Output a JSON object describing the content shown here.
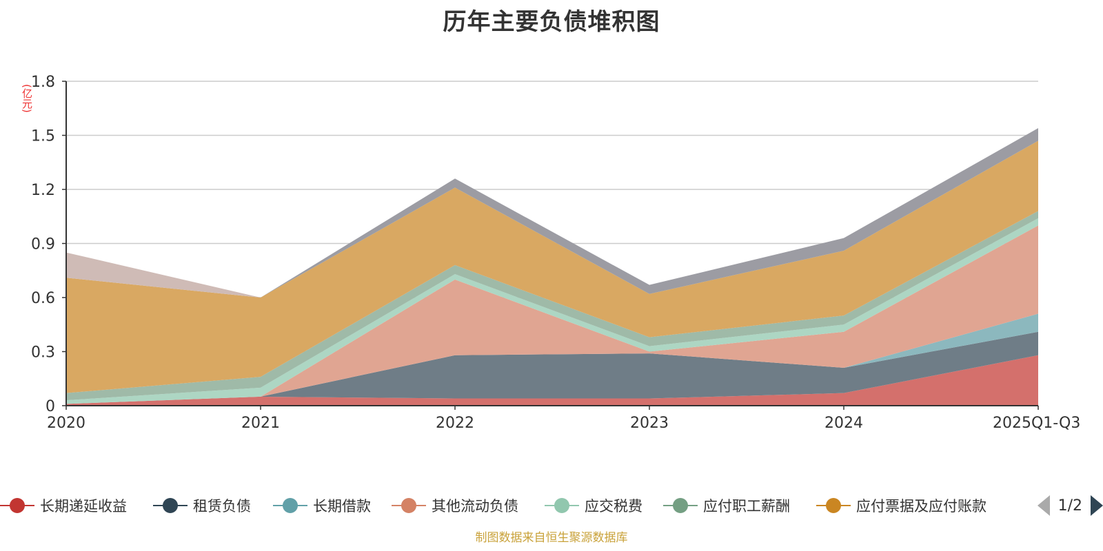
{
  "title": "历年主要负债堆积图",
  "unit_label": "(亿元)",
  "source_note": "制图数据来自恒生聚源数据库",
  "pager": {
    "text": "1/2"
  },
  "colors": {
    "grid": "#cccccc",
    "axis": "#333333"
  },
  "chart_data": {
    "type": "area",
    "stacked": true,
    "title": "历年主要负债堆积图",
    "ylabel": "(亿元)",
    "categories": [
      "2020",
      "2021",
      "2022",
      "2023",
      "2024",
      "2025Q1-Q3"
    ],
    "ylim": [
      0,
      1.8
    ],
    "yticks": [
      "0",
      "0.3",
      "0.6",
      "0.9",
      "1.2",
      "1.5",
      "1.8"
    ],
    "ytick_values": [
      0,
      0.3,
      0.6,
      0.9,
      1.2,
      1.5,
      1.8
    ],
    "grid": true,
    "legend_position": "bottom",
    "series": [
      {
        "name": "长期递延收益",
        "color": "#c23531",
        "area_color": "#d4706c",
        "values": [
          0.01,
          0.05,
          0.04,
          0.04,
          0.07,
          0.28
        ]
      },
      {
        "name": "租赁负债",
        "color": "#2f4554",
        "area_color": "#6f7d87",
        "values": [
          0.0,
          0.0,
          0.24,
          0.25,
          0.14,
          0.13
        ]
      },
      {
        "name": "长期借款",
        "color": "#61a0a8",
        "area_color": "#8cb8be",
        "values": [
          0.0,
          0.0,
          0.0,
          0.0,
          0.0,
          0.1
        ]
      },
      {
        "name": "其他流动负债",
        "color": "#d48265",
        "area_color": "#e0a592",
        "values": [
          0.0,
          0.0,
          0.42,
          0.01,
          0.2,
          0.49
        ]
      },
      {
        "name": "应交税费",
        "color": "#91c7ae",
        "area_color": "#add6c3",
        "values": [
          0.02,
          0.05,
          0.03,
          0.03,
          0.04,
          0.04
        ]
      },
      {
        "name": "应付职工薪酬",
        "color": "#749f83",
        "area_color": "#9fbaa8",
        "values": [
          0.04,
          0.06,
          0.05,
          0.05,
          0.05,
          0.04
        ]
      },
      {
        "name": "应付票据及应付账款",
        "color": "#ca8622",
        "area_color": "#d9a862",
        "values": [
          0.64,
          0.44,
          0.43,
          0.24,
          0.36,
          0.39
        ]
      },
      {
        "name": "",
        "color": "#7f7f88",
        "area_color": "#9c9ca3",
        "values": [
          0.0,
          0.0,
          0.05,
          0.05,
          0.07,
          0.07
        ]
      },
      {
        "name": "",
        "color": "#bfa9a4",
        "area_color": "#cfbbb6",
        "values": [
          0.14,
          0.0,
          0.0,
          0.0,
          0.0,
          0.0
        ]
      }
    ]
  }
}
